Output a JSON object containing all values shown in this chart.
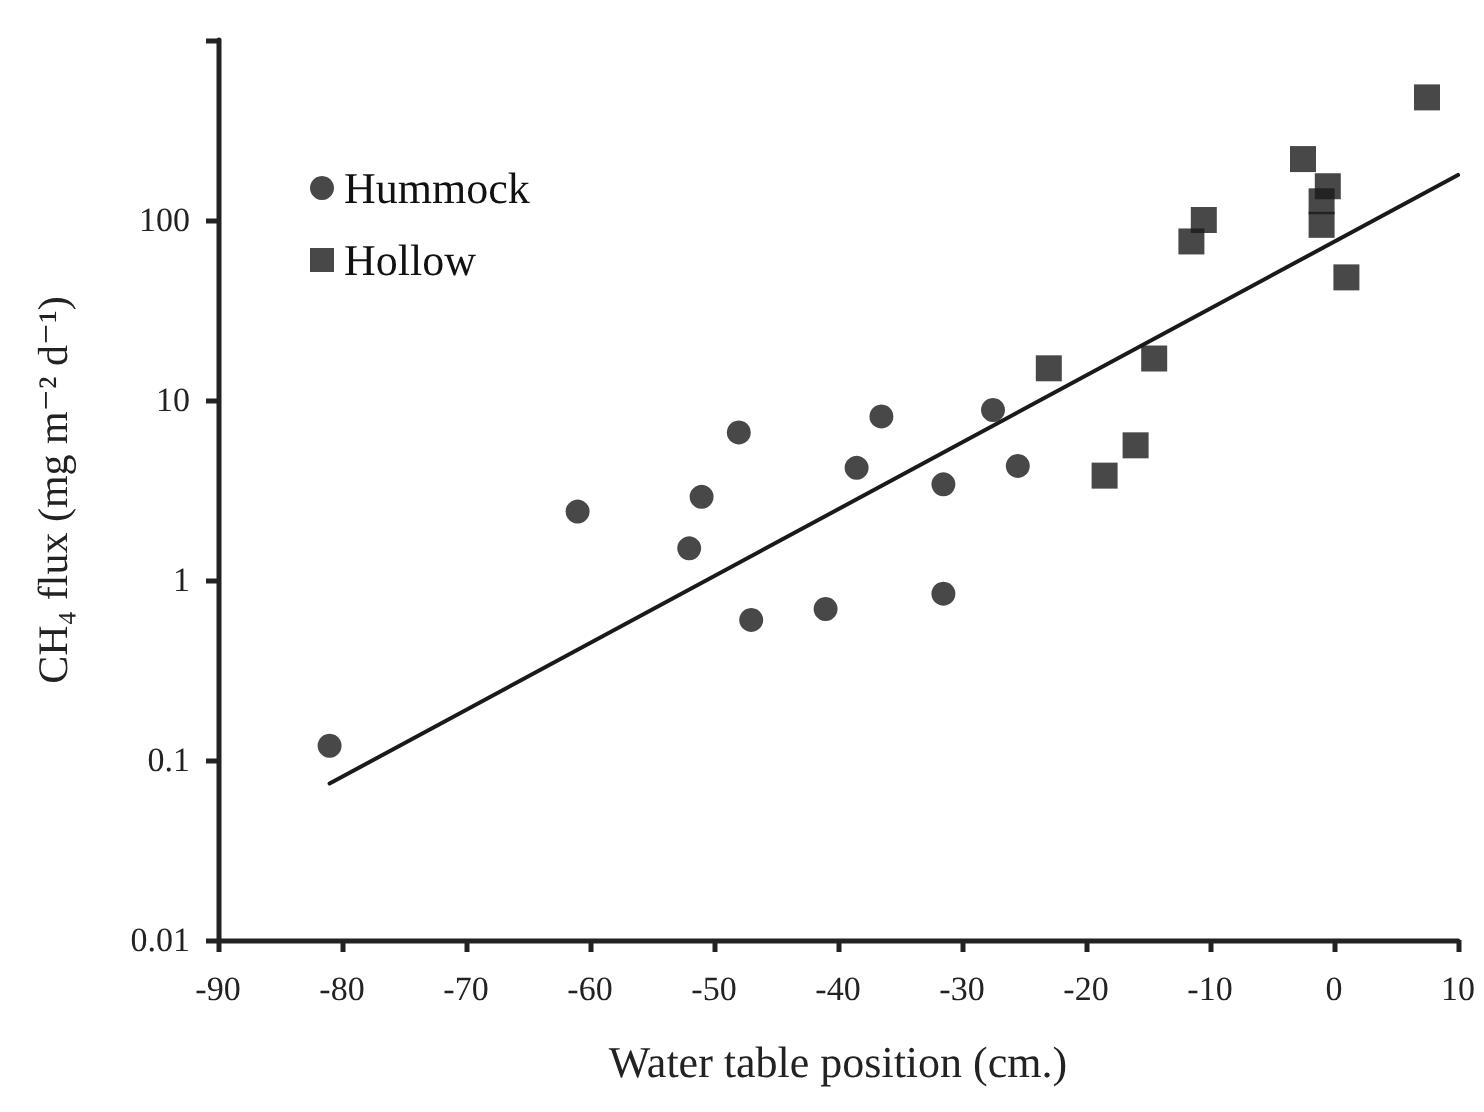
{
  "chart_data": {
    "type": "scatter",
    "xlabel": "Water table position (cm.)",
    "ylabel": "CH₄ flux (mg m⁻² d⁻¹)",
    "series": [
      {
        "name": "Hummock",
        "color": "#1a1a1a",
        "marker": "circle",
        "x": [
          -81,
          -61,
          -52,
          -51,
          -48,
          -47,
          -41,
          -38.5,
          -36.5,
          -31.5,
          -31.5,
          -27.5,
          -25.5
        ],
        "values": [
          0.12,
          2.4,
          1.5,
          2.9,
          6.6,
          0.6,
          0.69,
          4.2,
          8.1,
          0.84,
          3.4,
          8.8,
          4.3
        ]
      },
      {
        "name": "Hollow",
        "color": "#1a1a1a",
        "marker": "square",
        "x": [
          -23,
          -18.5,
          -16,
          -14.5,
          -11.5,
          -10.5,
          -2.5,
          -0.5,
          -1,
          -1,
          1,
          7.5
        ],
        "values": [
          15,
          3.8,
          5.6,
          17,
          76,
          100,
          218,
          154,
          127,
          94,
          48,
          480
        ]
      },
      {
        "type": "line",
        "color": "#1a1a1a",
        "line_style": "solid",
        "marker": "none",
        "x": [
          -81,
          10
        ],
        "values": [
          0.074,
          178
        ]
      }
    ],
    "xlim": [
      -90,
      10
    ],
    "xticks": [
      -90,
      -80,
      -70,
      -60,
      -50,
      -40,
      -30,
      -20,
      -10,
      0,
      10
    ],
    "ylim": [
      0.01,
      1000
    ],
    "yticks": [
      0.01,
      0.1,
      1,
      10,
      100,
      {
        "value": 1000,
        "label": null
      }
    ],
    "log": "y",
    "grid": false,
    "legend": "top left"
  }
}
